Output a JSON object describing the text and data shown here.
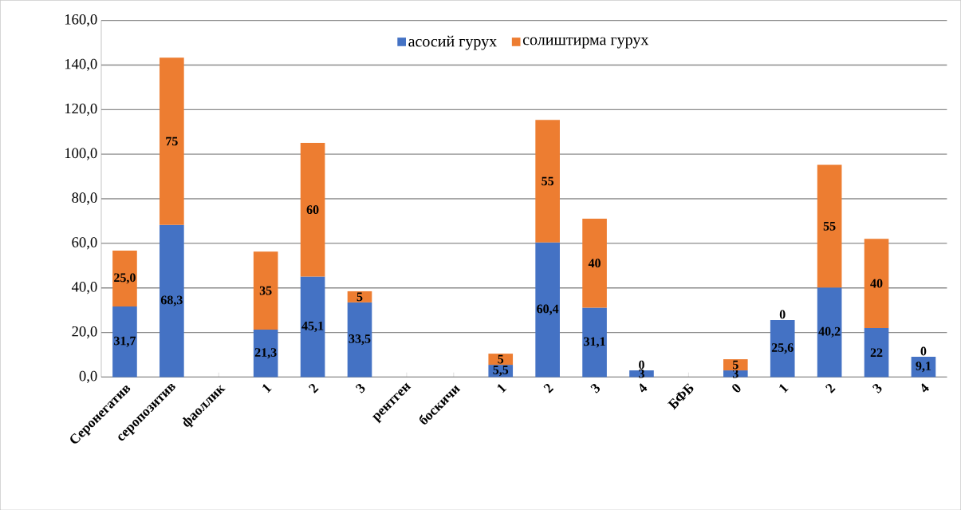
{
  "chart_data": {
    "type": "bar",
    "stacked": true,
    "categories": [
      "Серонегатив",
      "серопозитив",
      "фаоллик",
      "1",
      "2",
      "3",
      "рентген",
      "боскичи",
      "1",
      "2",
      "3",
      "4",
      "БФБ",
      "0",
      "1",
      "2",
      "3",
      "4"
    ],
    "series": [
      {
        "name": "асосий гурух",
        "color": "#4472c4",
        "values": [
          31.7,
          68.3,
          null,
          21.3,
          45.1,
          33.5,
          null,
          null,
          5.5,
          60.4,
          31.1,
          3,
          null,
          3,
          25.6,
          40.2,
          22,
          9.1
        ],
        "value_labels": [
          "31,7",
          "68,3",
          null,
          "21,3",
          "45,1",
          "33,5",
          null,
          null,
          "5,5",
          "60,4",
          "31,1",
          "3",
          null,
          "3",
          "25,6",
          "40,2",
          "22",
          "9,1"
        ]
      },
      {
        "name": "солиштирма гурух",
        "color": "#ed7d31",
        "values": [
          25.0,
          75,
          null,
          35,
          60,
          5,
          null,
          null,
          5,
          55,
          40,
          0,
          null,
          5,
          0,
          55,
          40,
          0
        ],
        "value_labels": [
          "25,0",
          "75",
          null,
          "35",
          "60",
          "5",
          null,
          null,
          "5",
          "55",
          "40",
          "0",
          null,
          "5",
          "0",
          "55",
          "40",
          "0"
        ]
      }
    ],
    "ylim": [
      0,
      160
    ],
    "yticks": [
      {
        "value": 0,
        "label": "0,0"
      },
      {
        "value": 20,
        "label": "20,0"
      },
      {
        "value": 40,
        "label": "40,0"
      },
      {
        "value": 60,
        "label": "60,0"
      },
      {
        "value": 80,
        "label": "80,0"
      },
      {
        "value": 100,
        "label": "100,0"
      },
      {
        "value": 120,
        "label": "120,0"
      },
      {
        "value": 140,
        "label": "140,0"
      },
      {
        "value": 160,
        "label": "160,0"
      }
    ],
    "grid": "y",
    "legend": "top"
  }
}
